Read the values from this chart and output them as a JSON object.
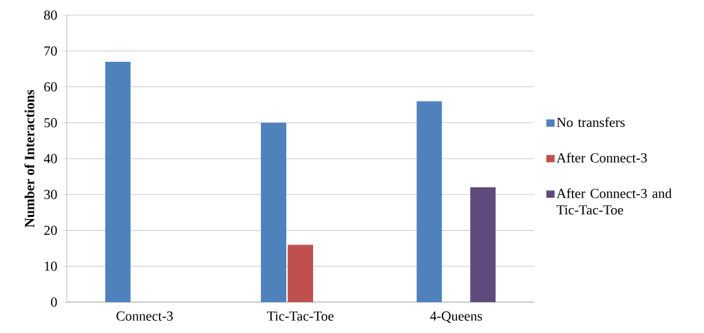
{
  "chart_data": {
    "type": "bar",
    "ylabel": "Number of Interactions",
    "categories": [
      "Connect-3",
      "Tic-Tac-Toe",
      "4-Queens"
    ],
    "series": [
      {
        "name": "No transfers",
        "color": "#4f81bd",
        "values": [
          67,
          50,
          56
        ]
      },
      {
        "name": "After Connect-3",
        "color": "#c0504d",
        "values": [
          null,
          16,
          null
        ]
      },
      {
        "name": "After Connect-3 and Tic-Tac-Toe",
        "color": "#604a7b",
        "values": [
          null,
          null,
          32
        ]
      }
    ],
    "ylim": [
      0,
      80
    ],
    "yticks": [
      0,
      10,
      20,
      30,
      40,
      50,
      60,
      70,
      80
    ],
    "grid": "y",
    "legend": "right"
  }
}
